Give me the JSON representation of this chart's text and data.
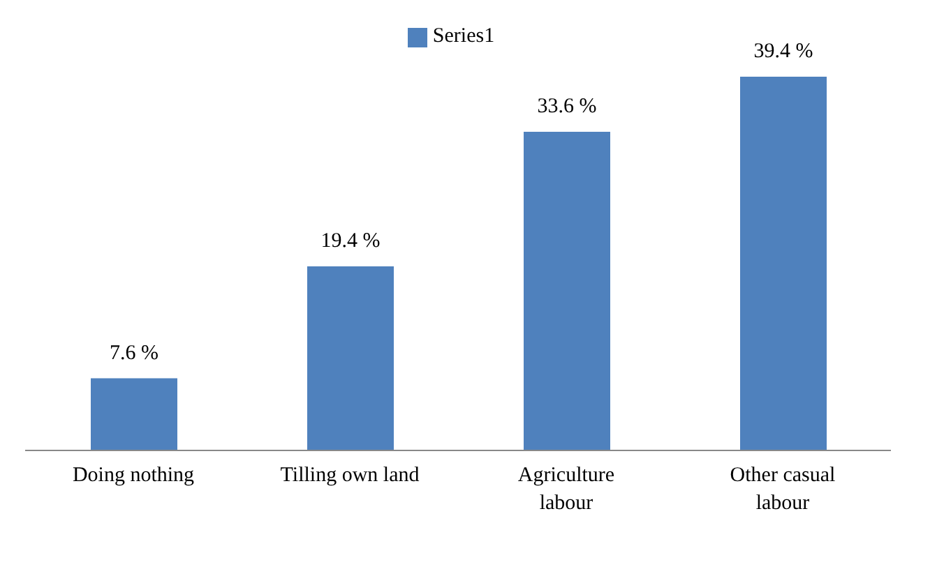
{
  "chart_data": {
    "type": "bar",
    "categories": [
      "Doing nothing",
      "Tilling own land",
      "Agriculture labour",
      "Other casual labour"
    ],
    "series": [
      {
        "name": "Series1",
        "color": "#4f81bd",
        "values": [
          7.6,
          19.4,
          33.6,
          39.4
        ],
        "value_labels": [
          "7.6 %",
          "19.4 %",
          "33.6 %",
          "39.4 %"
        ]
      }
    ],
    "legend": "top",
    "grid": false
  }
}
